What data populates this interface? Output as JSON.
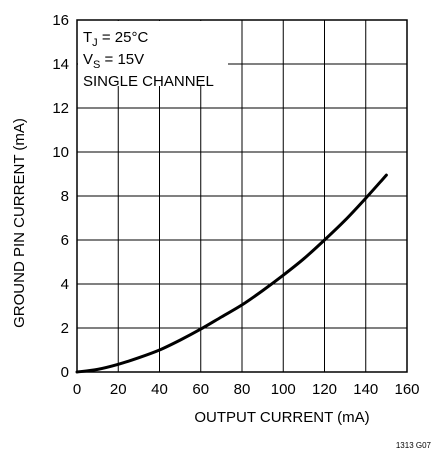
{
  "chart_data": {
    "type": "line",
    "xlabel": "OUTPUT CURRENT (mA)",
    "ylabel": "GROUND PIN CURRENT (mA)",
    "xlim": [
      0,
      160
    ],
    "ylim": [
      0,
      16
    ],
    "x_ticks": [
      "0",
      "20",
      "40",
      "60",
      "80",
      "100",
      "120",
      "140",
      "160"
    ],
    "y_ticks": [
      "0",
      "2",
      "4",
      "6",
      "8",
      "10",
      "12",
      "14",
      "16"
    ],
    "grid": true,
    "annotations": {
      "tj_symbol": "T",
      "tj_sub": "J",
      "tj_rest": " = 25°C",
      "vs_symbol": "V",
      "vs_sub": "S",
      "vs_rest": " = 15V",
      "channel": "SINGLE CHANNEL"
    },
    "figure_number": "1313 G07",
    "series": [
      {
        "x": [
          0,
          10,
          20,
          30,
          40,
          50,
          60,
          70,
          80,
          90,
          100,
          110,
          120,
          130,
          140,
          150
        ],
        "y": [
          0,
          0.12,
          0.35,
          0.65,
          1.0,
          1.45,
          1.95,
          2.5,
          3.05,
          3.7,
          4.4,
          5.15,
          6.0,
          6.9,
          7.9,
          8.95
        ]
      }
    ]
  }
}
